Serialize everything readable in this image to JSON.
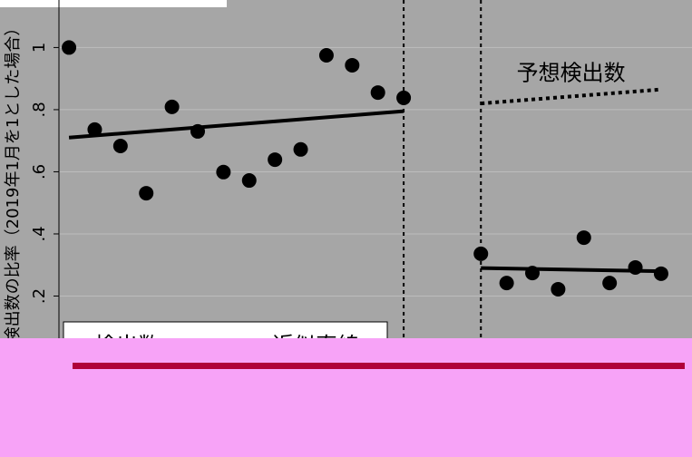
{
  "chart_data": {
    "type": "scatter",
    "ylabel": "検出数の比率（2019年1月を1とした場合）",
    "xlim": [
      0.61,
      25.2
    ],
    "ylim": [
      0,
      1.153
    ],
    "yticks": [
      {
        "value": 0.2,
        "label": ".2"
      },
      {
        "value": 0.4,
        "label": ".4"
      },
      {
        "value": 0.6,
        "label": ".6"
      },
      {
        "value": 0.8,
        "label": ".8"
      },
      1
    ],
    "grid": true,
    "vlines": [
      14,
      17
    ],
    "series": [
      {
        "name": "検出数",
        "color": "#000000",
        "x": [
          1,
          2,
          3,
          4,
          5,
          6,
          7,
          8,
          9,
          10,
          11,
          12,
          13,
          14,
          17,
          18,
          19,
          20,
          21,
          22,
          23,
          24
        ],
        "values": [
          1.0,
          0.736,
          0.683,
          0.531,
          0.809,
          0.73,
          0.599,
          0.572,
          0.639,
          0.672,
          0.975,
          0.943,
          0.855,
          0.838,
          0.336,
          0.242,
          0.274,
          0.222,
          0.388,
          0.242,
          0.292,
          0.272
        ]
      },
      {
        "name": "近似直線",
        "color": "#000000",
        "x": [
          1,
          14,
          null,
          17,
          24
        ],
        "values": [
          0.71,
          0.795,
          null,
          0.29,
          0.28
        ]
      }
    ],
    "annotations": [
      {
        "text": "予想検出数",
        "x": [
          17,
          24
        ],
        "values": [
          0.82,
          0.865
        ]
      }
    ]
  }
}
